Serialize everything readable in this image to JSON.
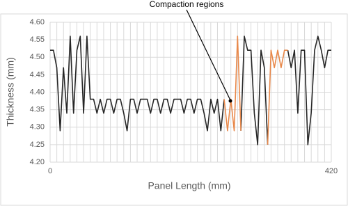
{
  "chart_data": {
    "type": "line",
    "annotation": "Compaction regions",
    "x_label": "Panel Length (mm)",
    "y_label": "Thickness (mm)",
    "x": [
      0,
      5,
      10,
      15,
      20,
      25,
      30,
      35,
      40,
      45,
      50,
      55,
      60,
      65,
      70,
      75,
      80,
      85,
      90,
      95,
      100,
      105,
      110,
      115,
      120,
      125,
      130,
      135,
      140,
      145,
      150,
      155,
      160,
      165,
      170,
      175,
      180,
      185,
      190,
      195,
      200,
      205,
      210,
      215,
      220,
      225,
      230,
      235,
      240,
      245,
      250,
      255,
      260,
      265,
      270,
      275,
      280,
      285,
      290,
      295,
      300,
      305,
      310,
      315,
      320,
      325,
      330,
      335,
      340,
      345,
      350,
      355,
      360,
      365,
      370,
      375,
      380,
      385,
      390,
      395,
      400,
      405,
      410,
      415,
      420
    ],
    "series": [
      {
        "name": "Thickness",
        "color": "#262626",
        "values": [
          4.52,
          4.52,
          4.47,
          4.29,
          4.47,
          4.34,
          4.56,
          4.34,
          4.52,
          4.56,
          4.34,
          4.56,
          4.38,
          4.38,
          4.34,
          4.38,
          4.34,
          4.38,
          4.38,
          4.34,
          4.38,
          4.38,
          4.34,
          4.29,
          4.38,
          4.38,
          4.34,
          4.38,
          4.38,
          4.38,
          4.34,
          4.38,
          4.38,
          4.34,
          4.38,
          4.38,
          4.34,
          4.38,
          4.38,
          4.38,
          4.34,
          4.38,
          4.38,
          4.34,
          4.38,
          4.38,
          4.34,
          4.29,
          4.38,
          4.34,
          4.38,
          4.29,
          4.38,
          null,
          null,
          null,
          null,
          4.29,
          4.56,
          4.52,
          4.52,
          4.34,
          4.25,
          4.52,
          4.47,
          4.25,
          null,
          null,
          null,
          null,
          null,
          4.52,
          4.47,
          4.52,
          4.34,
          4.52,
          4.52,
          4.25,
          4.34,
          4.52,
          4.56,
          4.52,
          4.47,
          4.52,
          4.52
        ]
      },
      {
        "name": "Compaction",
        "color": "#e8884a",
        "values": [
          null,
          null,
          null,
          null,
          null,
          null,
          null,
          null,
          null,
          null,
          null,
          null,
          null,
          null,
          null,
          null,
          null,
          null,
          null,
          null,
          null,
          null,
          null,
          null,
          null,
          null,
          null,
          null,
          null,
          null,
          null,
          null,
          null,
          null,
          null,
          null,
          null,
          null,
          null,
          null,
          null,
          null,
          null,
          null,
          null,
          null,
          null,
          null,
          null,
          null,
          null,
          null,
          4.38,
          4.29,
          4.38,
          4.29,
          4.56,
          4.29,
          null,
          null,
          null,
          null,
          null,
          null,
          null,
          4.25,
          4.52,
          4.47,
          4.52,
          4.47,
          4.52,
          4.52,
          null,
          null,
          null,
          null,
          null,
          null,
          null,
          null,
          null,
          null,
          null,
          null,
          null
        ]
      }
    ],
    "xlim": [
      0,
      420
    ],
    "xticks": [
      0,
      420
    ],
    "ylim": [
      4.2,
      4.6
    ],
    "yticks": [
      {
        "value": 4.2,
        "label": "4.20"
      },
      {
        "value": 4.25,
        "label": "4.25"
      },
      {
        "value": 4.3,
        "label": "4.30"
      },
      {
        "value": 4.35,
        "label": "4.35"
      },
      {
        "value": 4.4,
        "label": "4.40"
      },
      {
        "value": 4.45,
        "label": "4.45"
      },
      {
        "value": 4.5,
        "label": "4.50"
      },
      {
        "value": 4.55,
        "label": "4.55"
      },
      {
        "value": 4.6,
        "label": "4.60"
      }
    ],
    "grid": true
  }
}
